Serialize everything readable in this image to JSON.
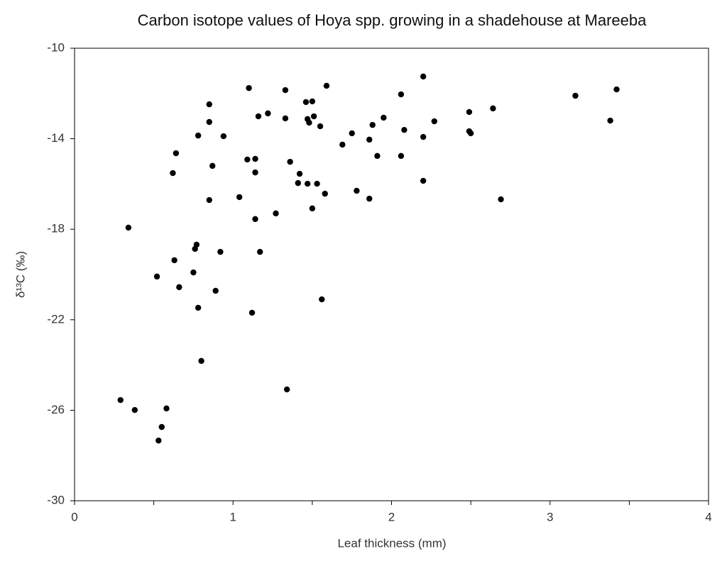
{
  "chart_data": {
    "type": "scatter",
    "title": "Carbon isotope values of Hoya spp. growing in a shadehouse at Mareeba",
    "xlabel": "Leaf thickness (mm)",
    "ylabel": "δ¹³C (‰)",
    "xlim": [
      0,
      4
    ],
    "xticks": [
      0,
      1,
      2,
      3,
      4
    ],
    "xminorticks": [
      0.5,
      1.5,
      2.5,
      3.5
    ],
    "ylim": [
      -30,
      -10
    ],
    "yticks": [
      -10,
      -14,
      -18,
      -22,
      -26,
      -30
    ],
    "color": "#000000",
    "x": [
      0.34,
      0.29,
      0.38,
      0.55,
      0.58,
      0.53,
      0.52,
      0.63,
      0.62,
      0.64,
      0.66,
      0.75,
      0.76,
      0.77,
      0.78,
      0.78,
      0.8,
      0.85,
      0.85,
      0.85,
      0.87,
      0.89,
      0.92,
      0.94,
      1.04,
      1.09,
      1.1,
      1.12,
      1.14,
      1.14,
      1.14,
      1.16,
      1.17,
      1.22,
      1.27,
      1.33,
      1.33,
      1.34,
      1.36,
      1.41,
      1.42,
      1.46,
      1.47,
      1.47,
      1.48,
      1.5,
      1.5,
      1.51,
      1.53,
      1.55,
      1.56,
      1.58,
      1.59,
      1.69,
      1.75,
      1.78,
      1.86,
      1.86,
      1.88,
      1.91,
      1.95,
      2.06,
      2.06,
      2.08,
      2.2,
      2.2,
      2.2,
      2.27,
      2.49,
      2.49,
      2.5,
      2.64,
      2.69,
      3.16,
      3.38,
      3.42
    ],
    "y": [
      -17.93,
      -25.55,
      -25.99,
      -26.74,
      -25.92,
      -27.34,
      -20.09,
      -19.37,
      -15.52,
      -14.64,
      -20.56,
      -19.91,
      -18.87,
      -18.68,
      -21.47,
      -13.86,
      -23.82,
      -16.71,
      -12.48,
      -13.26,
      -15.2,
      -20.72,
      -19.0,
      -13.89,
      -16.58,
      -14.92,
      -11.76,
      -21.69,
      -14.89,
      -15.49,
      -17.55,
      -13.01,
      -19.0,
      -12.88,
      -17.3,
      -11.85,
      -13.1,
      -25.08,
      -15.02,
      -15.96,
      -15.55,
      -12.38,
      -13.13,
      -15.99,
      -13.29,
      -12.35,
      -17.08,
      -13.01,
      -15.99,
      -13.45,
      -21.1,
      -16.43,
      -11.66,
      -14.26,
      -13.76,
      -16.3,
      -14.04,
      -16.65,
      -13.39,
      -14.76,
      -13.07,
      -12.04,
      -14.76,
      -13.61,
      -11.25,
      -13.92,
      -15.86,
      -13.23,
      -13.67,
      -12.82,
      -13.76,
      -12.66,
      -16.68,
      -12.1,
      -13.2,
      -11.82
    ]
  }
}
